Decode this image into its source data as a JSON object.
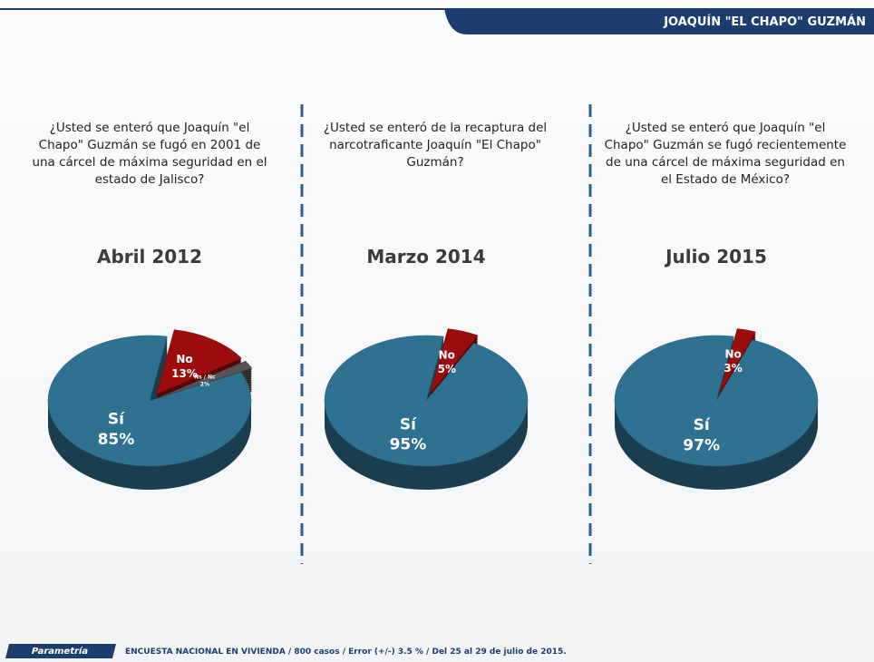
{
  "header": {
    "title": "JOAQUÍN \"EL CHAPO\" GUZMÁN"
  },
  "footer": {
    "brand": "Parametría",
    "note": "ENCUESTA NACIONAL EN VIVIENDA  / 800 casos / Error (+/-)  3.5 % / Del 25 al 29 de julio de 2015."
  },
  "chart_data": [
    {
      "type": "pie",
      "subtitle": "¿Usted se enteró que Joaquín \"el Chapo\" Guzmán se fugó en 2001 de una cárcel de máxima seguridad en el estado de Jalisco?",
      "title": "Abril 2012",
      "categories": [
        "Sí",
        "No",
        "Ns / Nc"
      ],
      "values": [
        85,
        13,
        2
      ],
      "value_labels": [
        "85%",
        "13%",
        "2%"
      ],
      "colors": [
        "#2f7190",
        "#9c0c0c",
        "#555555"
      ]
    },
    {
      "type": "pie",
      "subtitle": "¿Usted se enteró de la recaptura del narcotraficante Joaquín \"El Chapo\" Guzmán?",
      "title": "Marzo 2014",
      "categories": [
        "Sí",
        "No"
      ],
      "values": [
        95,
        5
      ],
      "value_labels": [
        "95%",
        "5%"
      ],
      "colors": [
        "#2f7190",
        "#9c0c0c"
      ]
    },
    {
      "type": "pie",
      "subtitle": "¿Usted se enteró que Joaquín \"el Chapo\" Guzmán se fugó recientemente  de una cárcel de máxima seguridad en el Estado de México?",
      "title": "Julio 2015",
      "categories": [
        "Sí",
        "No"
      ],
      "values": [
        97,
        3
      ],
      "value_labels": [
        "97%",
        "3%"
      ],
      "colors": [
        "#2f7190",
        "#9c0c0c"
      ]
    }
  ]
}
